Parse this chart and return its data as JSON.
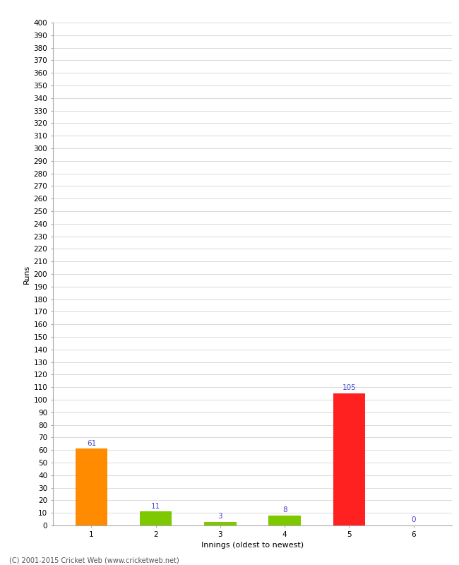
{
  "categories": [
    "1",
    "2",
    "3",
    "4",
    "5",
    "6"
  ],
  "values": [
    61,
    11,
    3,
    8,
    105,
    0
  ],
  "bar_colors": [
    "#ff8c00",
    "#7ec800",
    "#7ec800",
    "#7ec800",
    "#ff2020",
    "#7ec800"
  ],
  "xlabel": "Innings (oldest to newest)",
  "ylabel": "Runs",
  "ylim": [
    0,
    400
  ],
  "yticks": [
    0,
    10,
    20,
    30,
    40,
    50,
    60,
    70,
    80,
    90,
    100,
    110,
    120,
    130,
    140,
    150,
    160,
    170,
    180,
    190,
    200,
    210,
    220,
    230,
    240,
    250,
    260,
    270,
    280,
    290,
    300,
    310,
    320,
    330,
    340,
    350,
    360,
    370,
    380,
    390,
    400
  ],
  "label_color": "#4444cc",
  "label_fontsize": 7.5,
  "axis_label_fontsize": 8,
  "tick_fontsize": 7.5,
  "background_color": "#ffffff",
  "grid_color": "#cccccc",
  "footer_text": "(C) 2001-2015 Cricket Web (www.cricketweb.net)"
}
